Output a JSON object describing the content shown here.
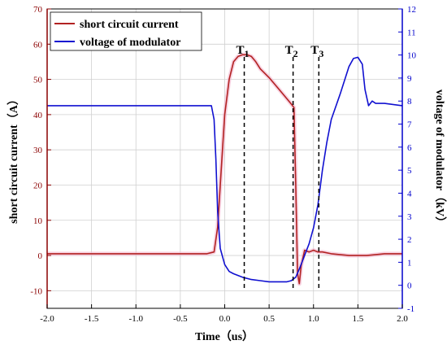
{
  "chart_data": {
    "type": "line",
    "xlabel": "Time（us）",
    "ylabel_left": "short circuit current（A）",
    "ylabel_right": "voltage of modulator（kV）",
    "xlim": [
      -2.0,
      2.0
    ],
    "ylim_left": [
      -15,
      70
    ],
    "ylim_right": [
      -1,
      12
    ],
    "x_ticks": [
      -2.0,
      -1.5,
      -1.0,
      -0.5,
      0.0,
      0.5,
      1.0,
      1.5,
      2.0
    ],
    "x_tick_labels": [
      "-2.0",
      "-1.5",
      "-1.0",
      "-0.5",
      "0.0",
      "0.5",
      "1.0",
      "1.5",
      "2.0"
    ],
    "y_left_ticks": [
      -10,
      0,
      10,
      20,
      30,
      40,
      50,
      60,
      70
    ],
    "y_left_tick_labels": [
      "-10",
      "0",
      "10",
      "20",
      "30",
      "40",
      "50",
      "60",
      "70"
    ],
    "y_right_ticks": [
      -1,
      0,
      1,
      2,
      3,
      4,
      5,
      6,
      7,
      8,
      9,
      10,
      11,
      12
    ],
    "y_right_tick_labels": [
      "-1",
      "0",
      "1",
      "2",
      "3",
      "4",
      "5",
      "6",
      "7",
      "8",
      "9",
      "10",
      "11",
      "12"
    ],
    "grid": true,
    "legend_position": "top-left",
    "series": [
      {
        "name": "short circuit current",
        "axis": "left",
        "color": "#b22222",
        "x": [
          -2.0,
          -1.5,
          -1.0,
          -0.5,
          -0.2,
          -0.12,
          -0.08,
          -0.04,
          0.0,
          0.05,
          0.1,
          0.15,
          0.2,
          0.25,
          0.3,
          0.35,
          0.4,
          0.5,
          0.6,
          0.7,
          0.75,
          0.78,
          0.8,
          0.82,
          0.84,
          0.86,
          0.9,
          0.95,
          1.0,
          1.05,
          1.1,
          1.2,
          1.4,
          1.6,
          1.8,
          2.0
        ],
        "y": [
          0.5,
          0.5,
          0.5,
          0.5,
          0.5,
          1.0,
          8.0,
          24.0,
          40.0,
          50.0,
          55.0,
          56.5,
          57.0,
          57.0,
          56.5,
          55.0,
          53.0,
          50.5,
          47.5,
          44.5,
          43.0,
          42.0,
          20.0,
          -5.0,
          -8.0,
          -3.0,
          1.5,
          1.0,
          1.5,
          1.0,
          1.0,
          0.5,
          0.0,
          0.0,
          0.5,
          0.5
        ]
      },
      {
        "name": "voltage of modulator",
        "axis": "right",
        "color": "#1010d0",
        "x": [
          -2.0,
          -1.5,
          -1.0,
          -0.5,
          -0.15,
          -0.12,
          -0.1,
          -0.08,
          -0.05,
          0.0,
          0.05,
          0.1,
          0.2,
          0.3,
          0.4,
          0.5,
          0.6,
          0.7,
          0.75,
          0.8,
          0.85,
          0.9,
          0.95,
          1.0,
          1.05,
          1.1,
          1.15,
          1.2,
          1.3,
          1.4,
          1.45,
          1.5,
          1.55,
          1.58,
          1.62,
          1.66,
          1.7,
          1.8,
          2.0
        ],
        "y": [
          7.8,
          7.8,
          7.8,
          7.8,
          7.8,
          7.2,
          5.5,
          3.2,
          1.6,
          0.9,
          0.6,
          0.5,
          0.35,
          0.25,
          0.2,
          0.15,
          0.15,
          0.15,
          0.2,
          0.35,
          0.8,
          1.3,
          1.8,
          2.5,
          3.5,
          5.0,
          6.2,
          7.2,
          8.3,
          9.5,
          9.85,
          9.9,
          9.6,
          8.5,
          7.8,
          8.0,
          7.9,
          7.9,
          7.8
        ]
      }
    ],
    "markers": [
      {
        "label": "T",
        "sub": "1",
        "x": 0.22
      },
      {
        "label": "T",
        "sub": "2",
        "x": 0.77
      },
      {
        "label": "T",
        "sub": "3",
        "x": 1.06
      }
    ]
  }
}
